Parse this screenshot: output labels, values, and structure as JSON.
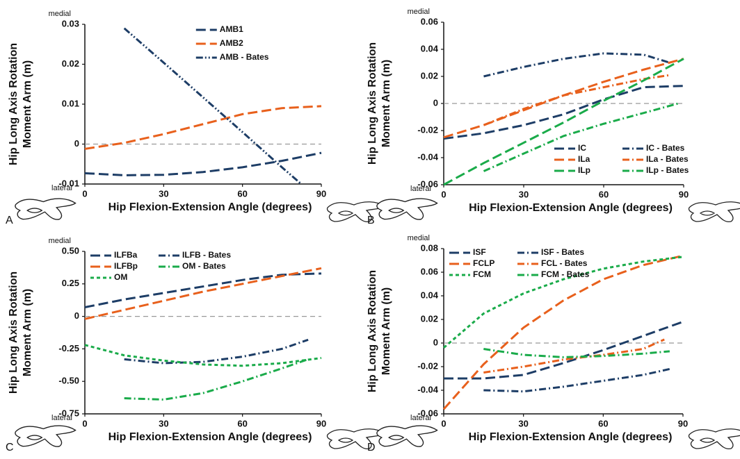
{
  "chart_data": [
    {
      "type": "line",
      "label": "A",
      "top_label": "medial",
      "bottom_label": "lateral",
      "ylabel": [
        "Hip Long Axis Rotation",
        "Moment Arm (m)"
      ],
      "xlabel": "Hip Flexion-Extension Angle (degrees)",
      "xlim": [
        0,
        90
      ],
      "xticks": [
        0,
        30,
        60,
        90
      ],
      "ylim": [
        -0.01,
        0.03
      ],
      "yticks": [
        -0.01,
        0,
        0.01,
        0.02,
        0.03
      ],
      "reference_line": 0,
      "legend": "upper center",
      "legend_columns": 1,
      "series": [
        {
          "name": "AMB1",
          "color": "#1d3d66",
          "dash": "dashed",
          "x": [
            0,
            15,
            30,
            45,
            60,
            75,
            90
          ],
          "values": [
            -0.0073,
            -0.0078,
            -0.0077,
            -0.007,
            -0.0058,
            -0.0042,
            -0.0022
          ]
        },
        {
          "name": "AMB2",
          "color": "#e8601c",
          "dash": "dashed",
          "x": [
            0,
            15,
            30,
            45,
            60,
            75,
            90
          ],
          "values": [
            -0.0012,
            0.0003,
            0.0025,
            0.005,
            0.0075,
            0.009,
            0.0095
          ]
        },
        {
          "name": "AMB - Bates",
          "color": "#1d3d66",
          "dash": "dashdotdot",
          "x": [
            15,
            30,
            45,
            60,
            75,
            82
          ],
          "values": [
            0.029,
            0.0204,
            0.0117,
            0.003,
            -0.0058,
            -0.0098
          ]
        }
      ]
    },
    {
      "type": "line",
      "label": "B",
      "top_label": "medial",
      "bottom_label": "lateral",
      "ylabel": [
        "Hip Long Axis Rotation",
        "Moment Arm (m)"
      ],
      "xlabel": "Hip Flexion-Extension Angle (degrees)",
      "xlim": [
        0,
        90
      ],
      "xticks": [
        0,
        30,
        60,
        90
      ],
      "ylim": [
        -0.06,
        0.06
      ],
      "yticks": [
        -0.06,
        -0.04,
        -0.02,
        0,
        0.02,
        0.04,
        0.06
      ],
      "reference_line": 0,
      "legend": "lower right",
      "legend_columns": 2,
      "series": [
        {
          "name": "IC",
          "color": "#1d3d66",
          "dash": "dashed",
          "x": [
            0,
            15,
            30,
            45,
            60,
            75,
            90
          ],
          "values": [
            -0.026,
            -0.022,
            -0.016,
            -0.008,
            0.003,
            0.012,
            0.013
          ]
        },
        {
          "name": "IC - Bates",
          "color": "#1d3d66",
          "dash": "dashdot",
          "x": [
            15,
            30,
            45,
            60,
            75,
            85
          ],
          "values": [
            0.02,
            0.027,
            0.033,
            0.037,
            0.036,
            0.03
          ]
        },
        {
          "name": "ILa",
          "color": "#e8601c",
          "dash": "dashed",
          "x": [
            0,
            15,
            30,
            45,
            60,
            75,
            90
          ],
          "values": [
            -0.025,
            -0.016,
            -0.005,
            0.006,
            0.016,
            0.025,
            0.033
          ]
        },
        {
          "name": "ILa - Bates",
          "color": "#e8601c",
          "dash": "dashdot",
          "x": [
            15,
            30,
            45,
            60,
            75,
            85
          ],
          "values": [
            -0.016,
            -0.004,
            0.006,
            0.012,
            0.018,
            0.021
          ]
        },
        {
          "name": "ILp",
          "color": "#1aab4a",
          "dash": "dashed",
          "x": [
            0,
            15,
            30,
            45,
            60,
            75,
            90
          ],
          "values": [
            -0.06,
            -0.044,
            -0.029,
            -0.014,
            0.002,
            0.017,
            0.033
          ]
        },
        {
          "name": "ILp - Bates",
          "color": "#1aab4a",
          "dash": "dashdot",
          "x": [
            15,
            30,
            45,
            60,
            75,
            88
          ],
          "values": [
            -0.05,
            -0.037,
            -0.024,
            -0.015,
            -0.007,
            0
          ]
        }
      ]
    },
    {
      "type": "line",
      "label": "C",
      "top_label": "medial",
      "bottom_label": "lateral",
      "ylabel": [
        "Hip Long Axis Rotation",
        "Moment Arm (m)"
      ],
      "xlabel": "Hip Flexion-Extension Angle (degrees)",
      "xlim": [
        0,
        90
      ],
      "xticks": [
        0,
        30,
        60,
        90
      ],
      "ylim": [
        -0.75,
        0.5
      ],
      "yticks": [
        -0.75,
        {
          "value": -0.5,
          "label": "-0.50"
        },
        -0.25,
        0,
        0.25,
        {
          "value": 0.5,
          "label": "0.50"
        }
      ],
      "reference_line": 0,
      "legend": "upper left",
      "legend_columns": 2,
      "series": [
        {
          "name": "ILFBa",
          "color": "#1d3d66",
          "dash": "dashed",
          "x": [
            0,
            15,
            30,
            45,
            60,
            75,
            90
          ],
          "values": [
            0.07,
            0.13,
            0.18,
            0.23,
            0.28,
            0.32,
            0.33
          ]
        },
        {
          "name": "ILFB - Bates",
          "color": "#1d3d66",
          "dash": "dashdot",
          "x": [
            15,
            30,
            45,
            60,
            75,
            85
          ],
          "values": [
            -0.33,
            -0.36,
            -0.35,
            -0.31,
            -0.25,
            -0.18
          ]
        },
        {
          "name": "ILFBp",
          "color": "#e8601c",
          "dash": "dashed",
          "x": [
            0,
            15,
            30,
            45,
            60,
            75,
            90
          ],
          "values": [
            -0.02,
            0.05,
            0.12,
            0.19,
            0.25,
            0.31,
            0.37
          ]
        },
        {
          "name": "OM - Bates",
          "color": "#1aab4a",
          "dash": "dashdot",
          "x": [
            15,
            30,
            45,
            60,
            75,
            85
          ],
          "values": [
            -0.63,
            -0.64,
            -0.59,
            -0.5,
            -0.4,
            -0.33
          ]
        },
        {
          "name": "OM",
          "color": "#1aab4a",
          "dash": "shortdash",
          "x": [
            0,
            15,
            30,
            45,
            60,
            75,
            90
          ],
          "values": [
            -0.22,
            -0.3,
            -0.34,
            -0.37,
            -0.38,
            -0.36,
            -0.32
          ]
        }
      ]
    },
    {
      "type": "line",
      "label": "D",
      "top_label": "medial",
      "bottom_label": "lateral",
      "ylabel": [
        "Hip Long Axis Rotation",
        "Moment Arm (m)"
      ],
      "xlabel": "Hip Flexion-Extension Angle (degrees)",
      "xlim": [
        0,
        90
      ],
      "xticks": [
        0,
        30,
        60,
        90
      ],
      "ylim": [
        -0.06,
        0.08
      ],
      "yticks": [
        -0.06,
        -0.04,
        -0.02,
        0,
        0.02,
        0.04,
        0.06,
        0.08
      ],
      "reference_line": 0,
      "legend": "upper left",
      "legend_columns": 2,
      "series": [
        {
          "name": "ISF",
          "color": "#1d3d66",
          "dash": "dashed",
          "x": [
            0,
            15,
            30,
            45,
            60,
            75,
            90
          ],
          "values": [
            -0.03,
            -0.03,
            -0.027,
            -0.017,
            -0.006,
            0.006,
            0.018
          ]
        },
        {
          "name": "ISF - Bates",
          "color": "#1d3d66",
          "dash": "dashdot",
          "x": [
            15,
            30,
            45,
            60,
            75,
            85
          ],
          "values": [
            -0.04,
            -0.041,
            -0.037,
            -0.032,
            -0.027,
            -0.022
          ]
        },
        {
          "name": "FCLP",
          "color": "#e8601c",
          "dash": "dashed",
          "x": [
            0,
            15,
            30,
            45,
            60,
            75,
            90
          ],
          "values": [
            -0.056,
            -0.018,
            0.013,
            0.036,
            0.054,
            0.066,
            0.074
          ]
        },
        {
          "name": "FCL - Bates",
          "color": "#e8601c",
          "dash": "dashdot",
          "x": [
            15,
            30,
            45,
            60,
            75,
            83
          ],
          "values": [
            -0.025,
            -0.02,
            -0.014,
            -0.01,
            -0.005,
            0.003
          ]
        },
        {
          "name": "FCM",
          "color": "#1aab4a",
          "dash": "shortdash",
          "x": [
            0,
            15,
            30,
            45,
            60,
            75,
            90
          ],
          "values": [
            -0.004,
            0.025,
            0.042,
            0.054,
            0.063,
            0.069,
            0.073
          ]
        },
        {
          "name": "FCM - Bates",
          "color": "#1aab4a",
          "dash": "dashdot",
          "x": [
            15,
            30,
            45,
            60,
            75,
            85
          ],
          "values": [
            -0.005,
            -0.01,
            -0.012,
            -0.011,
            -0.009,
            -0.007
          ]
        }
      ]
    }
  ]
}
